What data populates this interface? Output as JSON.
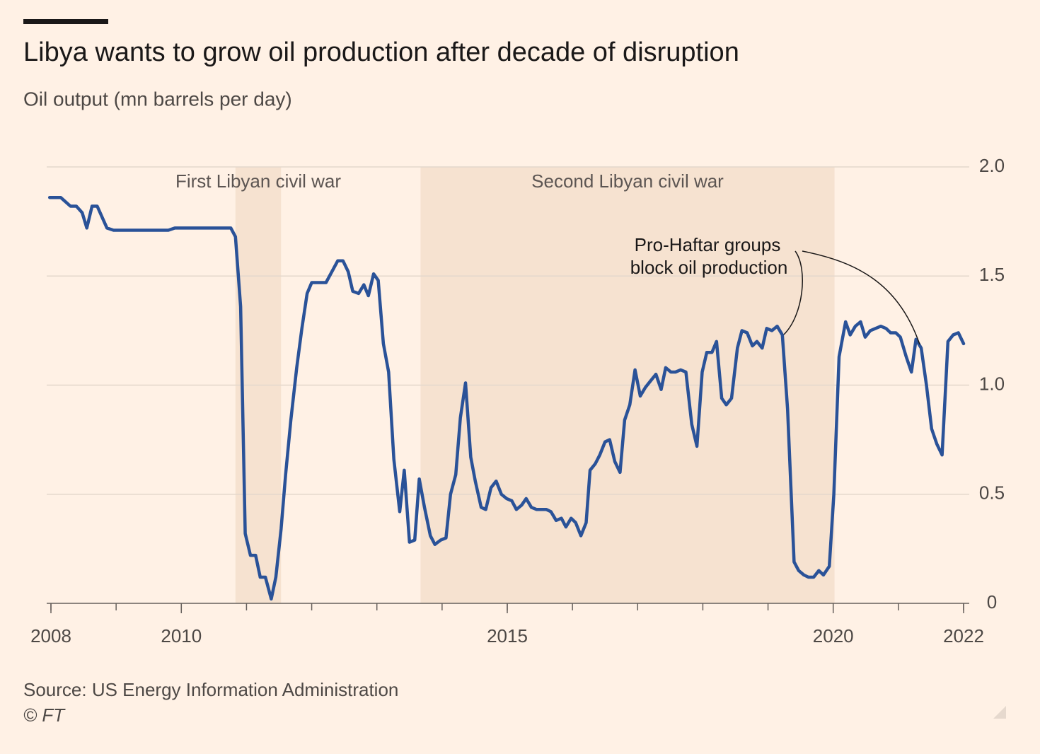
{
  "chart_data": {
    "type": "line",
    "title": "Libya wants to grow oil production after decade of disruption",
    "subtitle": "Oil output (mn barrels per day)",
    "source": "Source: US Energy Information Administration",
    "credit": "© FT",
    "annotation": [
      "Pro-Haftar groups",
      "block oil production"
    ],
    "shaded_periods": [
      {
        "label": "First Libyan civil war",
        "start": 2010.83,
        "end": 2011.53
      },
      {
        "label": "Second Libyan civil war",
        "start": 2013.67,
        "end": 2020.02
      }
    ],
    "xlim": [
      2008,
      2022
    ],
    "xticks": [
      2008,
      2010,
      2015,
      2020,
      2022
    ],
    "x_minor_ticks": [
      2008,
      2009,
      2010,
      2011,
      2012,
      2013,
      2014,
      2015,
      2016,
      2017,
      2018,
      2019,
      2020,
      2021,
      2022
    ],
    "ylim": [
      0,
      2
    ],
    "yticks": [
      0,
      0.5,
      {
        "value": 1,
        "label": "1.0"
      },
      1.5,
      {
        "value": 2,
        "label": "2.0"
      }
    ],
    "grid": true,
    "y_axis_side": "right",
    "series": [
      {
        "color": "#2a5298",
        "x": [
          2007.98,
          2008.15,
          2008.3,
          2008.39,
          2008.48,
          2008.55,
          2008.63,
          2008.71,
          2008.86,
          2008.96,
          2009.8,
          2009.9,
          2010.76,
          2010.83,
          2010.91,
          2010.98,
          2011.06,
          2011.14,
          2011.21,
          2011.29,
          2011.38,
          2011.45,
          2011.53,
          2011.6,
          2011.68,
          2011.77,
          2011.85,
          2011.93,
          2012.0,
          2012.22,
          2012.4,
          2012.48,
          2012.56,
          2012.63,
          2012.72,
          2012.8,
          2012.87,
          2012.95,
          2013.02,
          2013.1,
          2013.18,
          2013.26,
          2013.35,
          2013.42,
          2013.5,
          2013.58,
          2013.65,
          2013.73,
          2013.82,
          2013.89,
          2013.98,
          2014.06,
          2014.13,
          2014.21,
          2014.28,
          2014.36,
          2014.44,
          2014.51,
          2014.6,
          2014.67,
          2014.75,
          2014.83,
          2014.91,
          2014.99,
          2015.07,
          2015.14,
          2015.22,
          2015.29,
          2015.37,
          2015.45,
          2015.52,
          2015.6,
          2015.67,
          2015.75,
          2015.83,
          2015.9,
          2015.98,
          2016.05,
          2016.13,
          2016.21,
          2016.27,
          2016.35,
          2016.42,
          2016.5,
          2016.57,
          2016.65,
          2016.73,
          2016.8,
          2016.88,
          2016.96,
          2017.04,
          2017.12,
          2017.2,
          2017.28,
          2017.36,
          2017.43,
          2017.51,
          2017.58,
          2017.66,
          2017.74,
          2017.83,
          2017.91,
          2017.99,
          2018.06,
          2018.14,
          2018.21,
          2018.29,
          2018.36,
          2018.44,
          2018.53,
          2018.6,
          2018.68,
          2018.76,
          2018.83,
          2018.91,
          2018.98,
          2019.06,
          2019.14,
          2019.22,
          2019.3,
          2019.4,
          2019.47,
          2019.55,
          2019.62,
          2019.7,
          2019.78,
          2019.85,
          2019.94,
          2020.01,
          2020.09,
          2020.19,
          2020.26,
          2020.34,
          2020.42,
          2020.49,
          2020.57,
          2020.65,
          2020.73,
          2020.81,
          2020.88,
          2020.96,
          2021.03,
          2021.12,
          2021.2,
          2021.27,
          2021.35,
          2021.43,
          2021.51,
          2021.59,
          2021.67,
          2021.76,
          2021.84,
          2021.92,
          2022.0
        ],
        "values": [
          1.86,
          1.86,
          1.82,
          1.82,
          1.79,
          1.72,
          1.82,
          1.82,
          1.72,
          1.71,
          1.71,
          1.72,
          1.72,
          1.68,
          1.36,
          0.32,
          0.22,
          0.22,
          0.12,
          0.12,
          0.02,
          0.12,
          0.34,
          0.59,
          0.84,
          1.08,
          1.26,
          1.42,
          1.47,
          1.47,
          1.57,
          1.57,
          1.52,
          1.43,
          1.42,
          1.46,
          1.41,
          1.51,
          1.48,
          1.19,
          1.06,
          0.66,
          0.42,
          0.61,
          0.28,
          0.29,
          0.57,
          0.44,
          0.31,
          0.27,
          0.29,
          0.3,
          0.5,
          0.59,
          0.85,
          1.01,
          0.67,
          0.56,
          0.44,
          0.43,
          0.53,
          0.56,
          0.5,
          0.48,
          0.47,
          0.43,
          0.45,
          0.48,
          0.44,
          0.43,
          0.43,
          0.43,
          0.42,
          0.38,
          0.39,
          0.35,
          0.39,
          0.37,
          0.31,
          0.37,
          0.61,
          0.64,
          0.68,
          0.74,
          0.75,
          0.65,
          0.6,
          0.84,
          0.91,
          1.07,
          0.95,
          0.99,
          1.02,
          1.05,
          0.98,
          1.08,
          1.06,
          1.06,
          1.07,
          1.06,
          0.82,
          0.72,
          1.06,
          1.15,
          1.15,
          1.2,
          0.94,
          0.91,
          0.94,
          1.17,
          1.25,
          1.24,
          1.18,
          1.2,
          1.17,
          1.26,
          1.25,
          1.27,
          1.23,
          0.89,
          0.19,
          0.15,
          0.13,
          0.12,
          0.12,
          0.15,
          0.13,
          0.17,
          0.5,
          1.13,
          1.29,
          1.23,
          1.27,
          1.29,
          1.22,
          1.25,
          1.26,
          1.27,
          1.26,
          1.24,
          1.24,
          1.22,
          1.13,
          1.06,
          1.21,
          1.17,
          1.0,
          0.8,
          0.73,
          0.68,
          1.2,
          1.23,
          1.24,
          1.19
        ]
      }
    ]
  }
}
